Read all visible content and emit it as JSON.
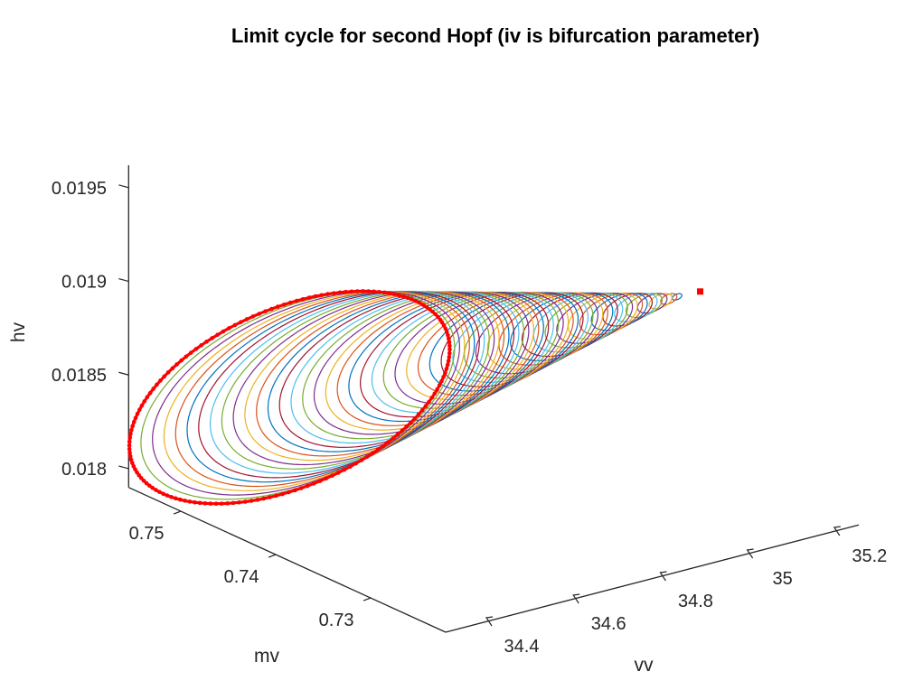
{
  "chart_data": {
    "type": "line3d",
    "title": "Limit cycle for second Hopf (iv is bifurcation parameter)",
    "xlabel": "vv",
    "ylabel": "mv",
    "zlabel": "hv",
    "xlim": [
      34.296,
      35.246
    ],
    "ylim": [
      0.7221,
      0.7555
    ],
    "zlim": [
      0.0179,
      0.01962
    ],
    "xticks": [
      34.4,
      34.6,
      34.8,
      35,
      35.2
    ],
    "xtick_labels": [
      "34.4",
      "34.6",
      "34.8",
      "35",
      "35.2"
    ],
    "yticks": [
      0.73,
      0.74,
      0.75
    ],
    "ytick_labels": [
      "0.73",
      "0.74",
      "0.75"
    ],
    "zticks": [
      0.018,
      0.0185,
      0.019,
      0.0195
    ],
    "ztick_labels": [
      "0.018",
      "0.0185",
      "0.019",
      "0.0195"
    ],
    "grid": false,
    "hopf_point": {
      "vv": 35.2,
      "mv": 0.7367,
      "hv": 0.018836
    },
    "cycle_family": {
      "count": 48,
      "amplitude_range": [
        0.03,
        1.0
      ],
      "apex": {
        "vv": 35.17,
        "mv": 0.7365,
        "hv": 0.018847
      },
      "largest_cycle": {
        "center": {
          "vv": 34.57,
          "mv": 0.7511,
          "hv": 0.018317
        },
        "axis_u": {
          "vv": 0.27,
          "mv": -0.0044,
          "hv": 0.000253
        },
        "axis_v": {
          "vv": 0.04,
          "mv": 0.00373,
          "hv": 0.000362
        }
      }
    },
    "series_colors": [
      "#0072BD",
      "#D95319",
      "#EDB120",
      "#7E2F8E",
      "#77AC30",
      "#4DBEEE",
      "#A2142F"
    ],
    "highlight_color": "#FF0000",
    "axis_color": "#262626"
  }
}
